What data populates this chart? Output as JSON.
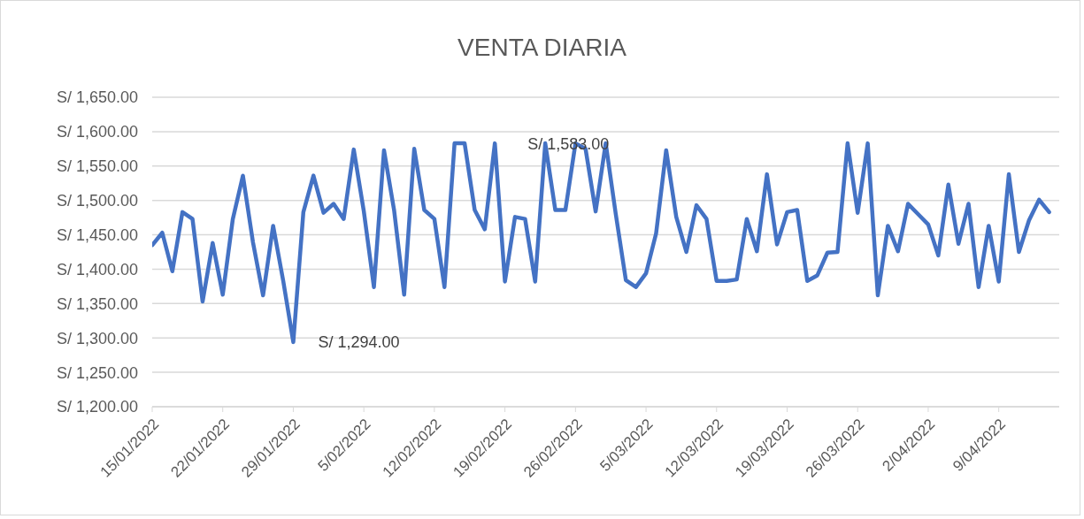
{
  "chart_data": {
    "type": "line",
    "title": "VENTA DIARIA",
    "x": [
      "2022-01-15",
      "2022-01-16",
      "2022-01-17",
      "2022-01-18",
      "2022-01-19",
      "2022-01-20",
      "2022-01-21",
      "2022-01-22",
      "2022-01-23",
      "2022-01-24",
      "2022-01-25",
      "2022-01-26",
      "2022-01-27",
      "2022-01-28",
      "2022-01-29",
      "2022-01-30",
      "2022-01-31",
      "2022-02-01",
      "2022-02-02",
      "2022-02-03",
      "2022-02-04",
      "2022-02-05",
      "2022-02-06",
      "2022-02-07",
      "2022-02-08",
      "2022-02-09",
      "2022-02-10",
      "2022-02-11",
      "2022-02-12",
      "2022-02-13",
      "2022-02-14",
      "2022-02-15",
      "2022-02-16",
      "2022-02-17",
      "2022-02-18",
      "2022-02-19",
      "2022-02-20",
      "2022-02-21",
      "2022-02-22",
      "2022-02-23",
      "2022-02-24",
      "2022-02-25",
      "2022-02-26",
      "2022-02-27",
      "2022-02-28",
      "2022-03-01",
      "2022-03-02",
      "2022-03-03",
      "2022-03-04",
      "2022-03-05",
      "2022-03-06",
      "2022-03-07",
      "2022-03-08",
      "2022-03-09",
      "2022-03-10",
      "2022-03-11",
      "2022-03-12",
      "2022-03-13",
      "2022-03-14",
      "2022-03-15",
      "2022-03-16",
      "2022-03-17",
      "2022-03-18",
      "2022-03-19",
      "2022-03-20",
      "2022-03-21",
      "2022-03-22",
      "2022-03-23",
      "2022-03-24",
      "2022-03-25",
      "2022-03-26",
      "2022-03-27",
      "2022-03-28",
      "2022-03-29",
      "2022-03-30",
      "2022-03-31",
      "2022-04-01",
      "2022-04-02",
      "2022-04-03",
      "2022-04-04",
      "2022-04-05",
      "2022-04-06",
      "2022-04-07",
      "2022-04-08",
      "2022-04-09",
      "2022-04-10",
      "2022-04-11",
      "2022-04-12",
      "2022-04-13",
      "2022-04-14"
    ],
    "series": [
      {
        "color": "#4472c4",
        "values": [
          1435,
          1453,
          1397,
          1483,
          1473,
          1353,
          1438,
          1363,
          1473,
          1536,
          1439,
          1362,
          1463,
          1383,
          1294,
          1483,
          1536,
          1482,
          1495,
          1473,
          1574,
          1484,
          1374,
          1573,
          1486,
          1363,
          1575,
          1486,
          1473,
          1374,
          1583,
          1583,
          1486,
          1458,
          1583,
          1382,
          1476,
          1473,
          1382,
          1583,
          1486,
          1486,
          1583,
          1575,
          1484,
          1583,
          1480,
          1384,
          1374,
          1394,
          1452,
          1573,
          1476,
          1425,
          1493,
          1473,
          1383,
          1383,
          1385,
          1473,
          1426,
          1538,
          1436,
          1483,
          1486,
          1383,
          1391,
          1424,
          1425,
          1583,
          1482,
          1583,
          1362,
          1463,
          1426,
          1495,
          1480,
          1465,
          1420,
          1523,
          1437,
          1495,
          1374,
          1463,
          1382,
          1538,
          1425,
          1471,
          1501,
          1483
        ]
      }
    ],
    "xlim": [
      "2022-01-15",
      "2022-04-15"
    ],
    "xticks": [
      {
        "value": "2022-01-15",
        "label": "15/01/2022"
      },
      {
        "value": "2022-01-22",
        "label": "22/01/2022"
      },
      {
        "value": "2022-01-29",
        "label": "29/01/2022"
      },
      {
        "value": "2022-02-05",
        "label": "5/02/2022"
      },
      {
        "value": "2022-02-12",
        "label": "12/02/2022"
      },
      {
        "value": "2022-02-19",
        "label": "19/02/2022"
      },
      {
        "value": "2022-02-26",
        "label": "26/02/2022"
      },
      {
        "value": "2022-03-05",
        "label": "5/03/2022"
      },
      {
        "value": "2022-03-12",
        "label": "12/03/2022"
      },
      {
        "value": "2022-03-19",
        "label": "19/03/2022"
      },
      {
        "value": "2022-03-26",
        "label": "26/03/2022"
      },
      {
        "value": "2022-04-02",
        "label": "2/04/2022"
      },
      {
        "value": "2022-04-09",
        "label": "9/04/2022"
      }
    ],
    "ylim": [
      1200,
      1650
    ],
    "yticks": [
      {
        "value": 1200,
        "label": "S/ 1,200.00"
      },
      {
        "value": 1250,
        "label": "S/ 1,250.00"
      },
      {
        "value": 1300,
        "label": "S/ 1,300.00"
      },
      {
        "value": 1350,
        "label": "S/ 1,350.00"
      },
      {
        "value": 1400,
        "label": "S/ 1,400.00"
      },
      {
        "value": 1450,
        "label": "S/ 1,450.00"
      },
      {
        "value": 1500,
        "label": "S/ 1,500.00"
      },
      {
        "value": 1550,
        "label": "S/ 1,550.00"
      },
      {
        "value": 1600,
        "label": "S/ 1,600.00"
      },
      {
        "value": 1650,
        "label": "S/ 1,650.00"
      }
    ],
    "grid": "y",
    "legend": false,
    "marker": "none",
    "line_style": "solid",
    "annotations": [
      {
        "text": "S/ 1,294.00",
        "x": "2022-01-29",
        "y": 1294
      },
      {
        "text": "S/ 1,583.00",
        "x": "2022-02-26",
        "y": 1583
      }
    ]
  }
}
